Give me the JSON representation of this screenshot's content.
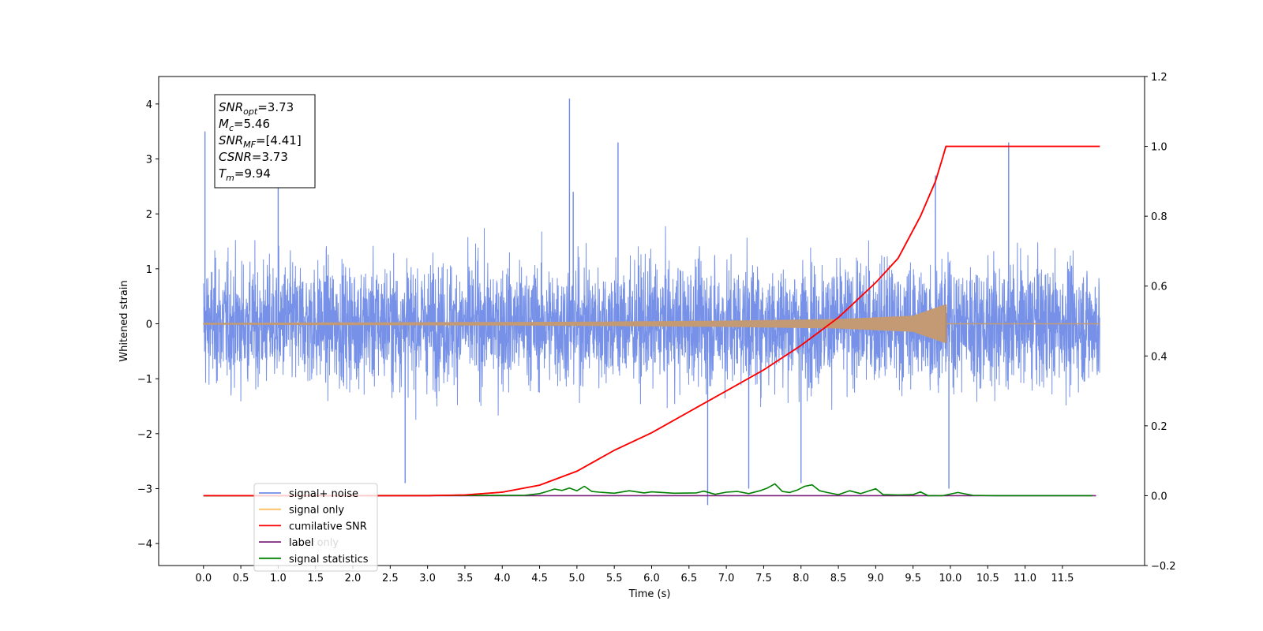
{
  "chart_data": {
    "type": "line",
    "xlabel": "Time (s)",
    "ylabel_left": "Whitened strain",
    "ylabel_right": "",
    "xlim": [
      -0.6,
      12.6
    ],
    "ylim_left": [
      -4.4,
      4.5
    ],
    "ylim_right": [
      -0.2,
      1.2
    ],
    "x_ticks": [
      0.0,
      0.5,
      1.0,
      1.5,
      2.0,
      2.5,
      3.0,
      3.5,
      4.0,
      4.5,
      5.0,
      5.5,
      6.0,
      6.5,
      7.0,
      7.5,
      8.0,
      8.5,
      9.0,
      9.5,
      10.0,
      10.5,
      11.0,
      11.5
    ],
    "x_tick_labels": [
      "0.0",
      "0.5",
      "1.0",
      "1.5",
      "2.0",
      "2.5",
      "3.0",
      "3.5",
      "4.0",
      "4.5",
      "5.0",
      "5.5",
      "6.0",
      "6.5",
      "7.0",
      "7.5",
      "8.0",
      "8.5",
      "9.0",
      "9.5",
      "10.0",
      "10.5",
      "11.0",
      "11.5"
    ],
    "y_left_ticks": [
      -4,
      -3,
      -2,
      -1,
      0,
      1,
      2,
      3,
      4
    ],
    "y_left_tick_labels": [
      "−4",
      "−3",
      "−2",
      "−1",
      "0",
      "1",
      "2",
      "3",
      "4"
    ],
    "y_right_ticks": [
      -0.2,
      0.0,
      0.2,
      0.4,
      0.6,
      0.8,
      1.0,
      1.2
    ],
    "y_right_tick_labels": [
      "−0.2",
      "0.0",
      "0.2",
      "0.4",
      "0.6",
      "0.8",
      "1.0",
      "1.2"
    ],
    "grid": false,
    "legend_position": "lower-left",
    "series": [
      {
        "name": "signal+ noise",
        "axis": "left",
        "color": "#6f8be6",
        "x_range": [
          0.0,
          12.0
        ],
        "envelope": [
          -1.6,
          1.6
        ],
        "peaks": [
          {
            "x": 0.02,
            "y": 3.5
          },
          {
            "x": 4.9,
            "y": 4.1
          },
          {
            "x": 1.0,
            "y": 2.9
          },
          {
            "x": 5.55,
            "y": 3.3
          },
          {
            "x": 9.8,
            "y": 2.7
          },
          {
            "x": 10.78,
            "y": 3.3
          },
          {
            "x": 6.75,
            "y": -3.3
          },
          {
            "x": 9.98,
            "y": -3.0
          },
          {
            "x": 2.7,
            "y": -2.9
          },
          {
            "x": 7.3,
            "y": -3.0
          },
          {
            "x": 4.95,
            "y": 2.4
          },
          {
            "x": 8.0,
            "y": -2.9
          }
        ]
      },
      {
        "name": "signal only",
        "axis": "left",
        "color": "#e0b070",
        "x_range": [
          0.0,
          12.0
        ],
        "chirp_end": 9.94,
        "amplitude_points": [
          [
            0.0,
            0.01
          ],
          [
            5.0,
            0.03
          ],
          [
            7.0,
            0.05
          ],
          [
            8.5,
            0.08
          ],
          [
            9.5,
            0.14
          ],
          [
            9.94,
            0.35
          ]
        ]
      },
      {
        "name": "cumilative SNR",
        "axis": "right",
        "color": "#ff0000",
        "x": [
          0.0,
          3.0,
          3.5,
          4.0,
          4.5,
          5.0,
          5.5,
          6.0,
          6.5,
          7.0,
          7.5,
          8.0,
          8.5,
          9.0,
          9.3,
          9.6,
          9.8,
          9.9,
          9.94,
          12.0
        ],
        "y": [
          0.0,
          0.0,
          0.002,
          0.01,
          0.03,
          0.07,
          0.13,
          0.18,
          0.24,
          0.3,
          0.36,
          0.43,
          0.51,
          0.61,
          0.68,
          0.8,
          0.9,
          0.97,
          1.0,
          1.0
        ]
      },
      {
        "name": "label",
        "axis": "right",
        "color": "#7b1f7b",
        "x": [
          0.0,
          11.95
        ],
        "y": [
          0.0,
          0.0
        ]
      },
      {
        "name": "signal statistics",
        "axis": "right",
        "color": "#008000",
        "x": [
          0.0,
          4.3,
          4.5,
          4.6,
          4.7,
          4.8,
          4.9,
          5.0,
          5.1,
          5.2,
          5.3,
          5.5,
          5.7,
          5.9,
          6.0,
          6.3,
          6.6,
          6.7,
          6.85,
          7.0,
          7.15,
          7.3,
          7.45,
          7.55,
          7.65,
          7.75,
          7.85,
          7.95,
          8.05,
          8.15,
          8.25,
          8.35,
          8.5,
          8.65,
          8.8,
          9.0,
          9.1,
          9.3,
          9.5,
          9.6,
          9.7,
          9.9,
          10.1,
          10.3,
          10.6,
          11.9
        ],
        "y": [
          0.0,
          0.001,
          0.006,
          0.012,
          0.019,
          0.015,
          0.022,
          0.014,
          0.027,
          0.012,
          0.01,
          0.007,
          0.014,
          0.008,
          0.011,
          0.007,
          0.008,
          0.013,
          0.004,
          0.01,
          0.012,
          0.006,
          0.014,
          0.022,
          0.034,
          0.012,
          0.009,
          0.016,
          0.027,
          0.031,
          0.014,
          0.009,
          0.003,
          0.014,
          0.006,
          0.02,
          0.003,
          0.002,
          0.003,
          0.011,
          0.0,
          0.0,
          0.009,
          0.001,
          0.0,
          0.0
        ]
      }
    ],
    "legend": [
      {
        "label": "signal+ noise",
        "color": "#6f8be6"
      },
      {
        "label": "signal only",
        "color": "#ffbf60"
      },
      {
        "label": "cumilative SNR",
        "color": "#ff0000"
      },
      {
        "label": "label",
        "color": "#7b1f7b"
      },
      {
        "label": "signal statistics",
        "color": "#008000"
      }
    ],
    "ghost_legend_text": "label only",
    "annotation": [
      {
        "var": "SNR",
        "sub": "opt",
        "value": "=3.73"
      },
      {
        "var": "M",
        "sub": "c",
        "value": "=5.46"
      },
      {
        "var": "SNR",
        "sub": "MF",
        "value": "=[4.41]"
      },
      {
        "var": "CSNR",
        "sub": "",
        "value": "=3.73"
      },
      {
        "var": "T",
        "sub": "m",
        "value": "=9.94"
      }
    ]
  }
}
